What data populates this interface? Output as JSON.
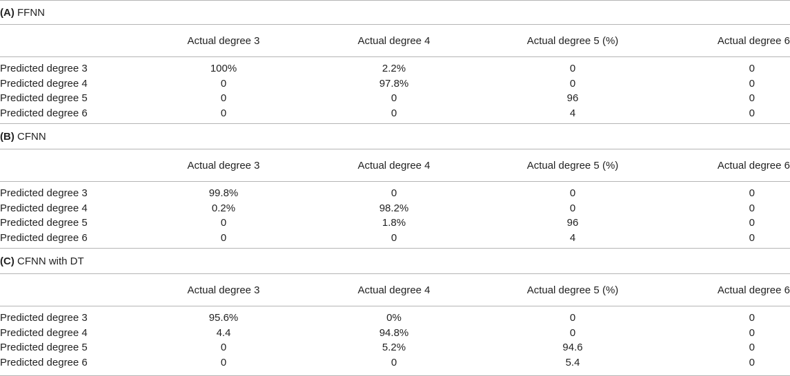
{
  "columns": [
    "Actual degree 3",
    "Actual degree 4",
    "Actual degree 5 (%)",
    "Actual degree 6"
  ],
  "sections": [
    {
      "letter": "(A)",
      "title": "FFNN",
      "rows": [
        {
          "label": "Predicted degree 3",
          "values": [
            "100%",
            "2.2%",
            "0",
            "0"
          ]
        },
        {
          "label": "Predicted degree 4",
          "values": [
            "0",
            "97.8%",
            "0",
            "0"
          ]
        },
        {
          "label": "Predicted degree 5",
          "values": [
            "0",
            "0",
            "96",
            "0"
          ]
        },
        {
          "label": "Predicted degree 6",
          "values": [
            "0",
            "0",
            "4",
            "0"
          ]
        }
      ]
    },
    {
      "letter": "(B)",
      "title": "CFNN",
      "rows": [
        {
          "label": "Predicted degree 3",
          "values": [
            "99.8%",
            "0",
            "0",
            "0"
          ]
        },
        {
          "label": "Predicted degree 4",
          "values": [
            "0.2%",
            "98.2%",
            "0",
            "0"
          ]
        },
        {
          "label": "Predicted degree 5",
          "values": [
            "0",
            "1.8%",
            "96",
            "0"
          ]
        },
        {
          "label": "Predicted degree 6",
          "values": [
            "0",
            "0",
            "4",
            "0"
          ]
        }
      ]
    },
    {
      "letter": "(C)",
      "title": "CFNN with DT",
      "rows": [
        {
          "label": "Predicted degree 3",
          "values": [
            "95.6%",
            "0%",
            "0",
            "0"
          ]
        },
        {
          "label": "Predicted degree 4",
          "values": [
            "4.4",
            "94.8%",
            "0",
            "0"
          ]
        },
        {
          "label": "Predicted degree 5",
          "values": [
            "0",
            "5.2%",
            "94.6",
            "0"
          ]
        },
        {
          "label": "Predicted degree 6",
          "values": [
            "0",
            "0",
            "5.4",
            "0"
          ]
        }
      ]
    }
  ]
}
